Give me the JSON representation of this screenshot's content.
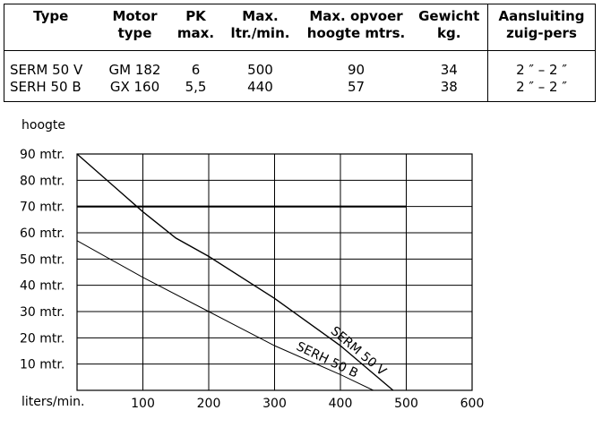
{
  "table": {
    "headers": [
      [
        "Type"
      ],
      [
        "Motor",
        "type"
      ],
      [
        "PK",
        "max."
      ],
      [
        "Max.",
        "ltr./min."
      ],
      [
        "Max. opvoer",
        "hoogte mtrs."
      ],
      [
        "Gewicht",
        "kg."
      ],
      [
        "Aansluiting",
        "zuig-pers"
      ]
    ],
    "rows": [
      [
        "SERM 50 V",
        "GM 182",
        "6",
        "500",
        "90",
        "34",
        "2 ″ – 2 ″"
      ],
      [
        "SERH 50 B",
        "GX 160",
        "5,5",
        "440",
        "57",
        "38",
        "2 ″ – 2 ″"
      ]
    ]
  },
  "chart_data": {
    "type": "line",
    "ylabel": "hoogte",
    "xlabel": "liters/min.",
    "xlim": [
      0,
      600
    ],
    "ylim": [
      0,
      90
    ],
    "x_ticks": [
      "100",
      "200",
      "300",
      "400",
      "500",
      "600"
    ],
    "y_ticks": [
      "10 mtr.",
      "20 mtr.",
      "30 mtr.",
      "40 mtr.",
      "50 mtr.",
      "60 mtr.",
      "70 mtr.",
      "80 mtr.",
      "90 mtr."
    ],
    "reference_line": {
      "y": 70
    },
    "series": [
      {
        "name": "SERM 50 V",
        "x": [
          0,
          100,
          150,
          200,
          300,
          400,
          480
        ],
        "y": [
          90,
          68,
          58,
          51,
          35,
          17,
          0
        ]
      },
      {
        "name": "SERH 50 B",
        "x": [
          0,
          100,
          200,
          300,
          400,
          450
        ],
        "y": [
          57,
          43,
          30,
          17,
          6,
          0
        ]
      }
    ],
    "grid": true
  }
}
